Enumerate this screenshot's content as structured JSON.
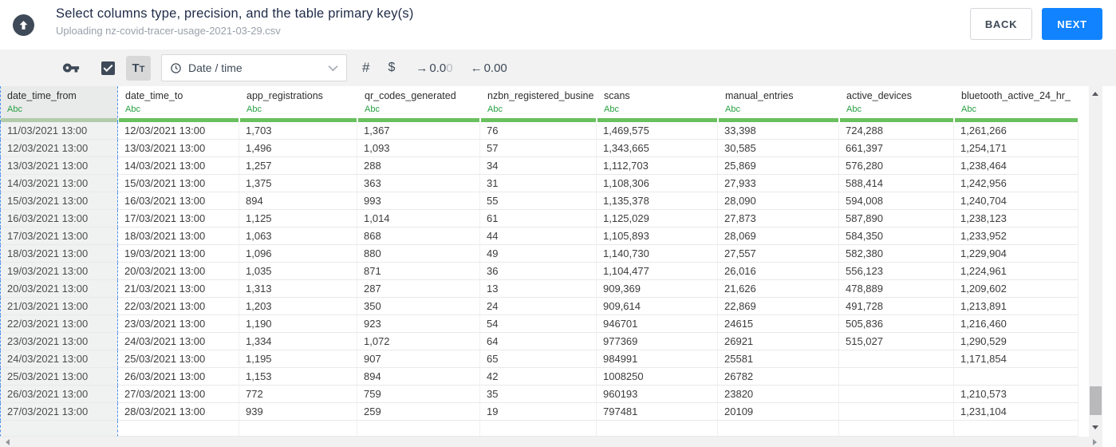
{
  "header": {
    "title": "Select columns type, precision, and the table primary key(s)",
    "subtitle": "Uploading nz-covid-tracer-usage-2021-03-29.csv",
    "back_label": "BACK",
    "next_label": "NEXT"
  },
  "toolbar": {
    "primary_key_icon": "key-icon",
    "checkbox_checked": true,
    "text_type_label": "Tt",
    "type_dropdown": {
      "value": "Date / time",
      "icon": "clock-icon"
    },
    "number_icon": "#",
    "currency_icon": "$",
    "increase_decimal": {
      "arrow": "→",
      "value_dark": "0.0",
      "value_light": "0"
    },
    "decrease_decimal": {
      "arrow": "←",
      "value": "0.00"
    }
  },
  "colors": {
    "accent_blue": "#1183ff",
    "selection_dashed_blue": "#4a90f2",
    "header_underline_green": "#6abf5f",
    "column_type_green": "#27a042"
  },
  "table": {
    "selected_column": "date_time_from",
    "columns": [
      {
        "name": "date_time_from",
        "type": "Abc"
      },
      {
        "name": "date_time_to",
        "type": "Abc"
      },
      {
        "name": "app_registrations",
        "type": "Abc"
      },
      {
        "name": "qr_codes_generated",
        "type": "Abc"
      },
      {
        "name": "nzbn_registered_busine",
        "type": "Abc"
      },
      {
        "name": "scans",
        "type": "Abc"
      },
      {
        "name": "manual_entries",
        "type": "Abc"
      },
      {
        "name": "active_devices",
        "type": "Abc"
      },
      {
        "name": "bluetooth_active_24_hr_",
        "type": "Abc"
      }
    ],
    "rows": [
      [
        "11/03/2021 13:00",
        "12/03/2021 13:00",
        "1,703",
        "1,367",
        "76",
        "1,469,575",
        "33,398",
        "724,288",
        "1,261,266"
      ],
      [
        "12/03/2021 13:00",
        "13/03/2021 13:00",
        "1,496",
        "1,093",
        "57",
        "1,343,665",
        "30,585",
        "661,397",
        "1,254,171"
      ],
      [
        "13/03/2021 13:00",
        "14/03/2021 13:00",
        "1,257",
        "288",
        "34",
        "1,112,703",
        "25,869",
        "576,280",
        "1,238,464"
      ],
      [
        "14/03/2021 13:00",
        "15/03/2021 13:00",
        "1,375",
        "363",
        "31",
        "1,108,306",
        "27,933",
        "588,414",
        "1,242,956"
      ],
      [
        "15/03/2021 13:00",
        "16/03/2021 13:00",
        "894",
        "993",
        "55",
        "1,135,378",
        "28,090",
        "594,008",
        "1,240,704"
      ],
      [
        "16/03/2021 13:00",
        "17/03/2021 13:00",
        "1,125",
        "1,014",
        "61",
        "1,125,029",
        "27,873",
        "587,890",
        "1,238,123"
      ],
      [
        "17/03/2021 13:00",
        "18/03/2021 13:00",
        "1,063",
        "868",
        "44",
        "1,105,893",
        "28,069",
        "584,350",
        "1,233,952"
      ],
      [
        "18/03/2021 13:00",
        "19/03/2021 13:00",
        "1,096",
        "880",
        "49",
        "1,140,730",
        "27,557",
        "582,380",
        "1,229,904"
      ],
      [
        "19/03/2021 13:00",
        "20/03/2021 13:00",
        "1,035",
        "871",
        "36",
        "1,104,477",
        "26,016",
        "556,123",
        "1,224,961"
      ],
      [
        "20/03/2021 13:00",
        "21/03/2021 13:00",
        "1,313",
        "287",
        "13",
        "909,369",
        "21,626",
        "478,889",
        "1,209,602"
      ],
      [
        "21/03/2021 13:00",
        "22/03/2021 13:00",
        "1,203",
        "350",
        "24",
        "909,614",
        "22,869",
        "491,728",
        "1,213,891"
      ],
      [
        "22/03/2021 13:00",
        "23/03/2021 13:00",
        "1,190",
        "923",
        "54",
        "946701",
        "24615",
        "505,836",
        "1,216,460"
      ],
      [
        "23/03/2021 13:00",
        "24/03/2021 13:00",
        "1,334",
        "1,072",
        "64",
        "977369",
        "26921",
        "515,027",
        "1,290,529"
      ],
      [
        "24/03/2021 13:00",
        "25/03/2021 13:00",
        "1,195",
        "907",
        "65",
        "984991",
        "25581",
        "",
        "1,171,854"
      ],
      [
        "25/03/2021 13:00",
        "26/03/2021 13:00",
        "1,153",
        "894",
        "42",
        "1008250",
        "26782",
        "",
        ""
      ],
      [
        "26/03/2021 13:00",
        "27/03/2021 13:00",
        "772",
        "759",
        "35",
        "960193",
        "23820",
        "",
        "1,210,573"
      ],
      [
        "27/03/2021 13:00",
        "28/03/2021 13:00",
        "939",
        "259",
        "19",
        "797481",
        "20109",
        "",
        "1,231,104"
      ]
    ]
  }
}
